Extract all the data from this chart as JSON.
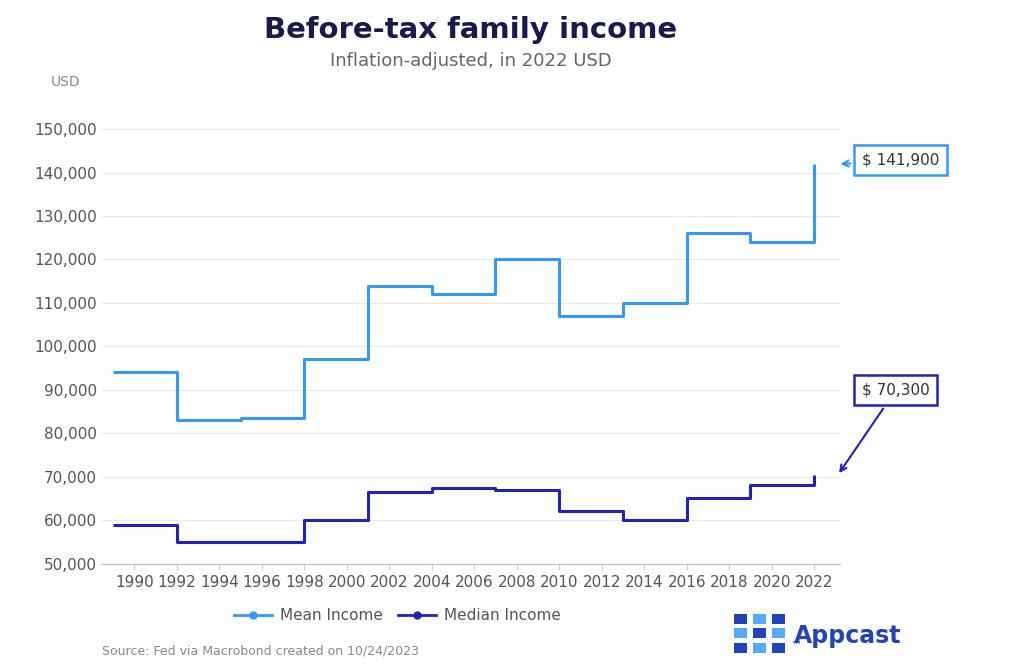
{
  "title": "Before-tax family income",
  "subtitle": "Inflation-adjusted, in 2022 USD",
  "ylabel": "USD",
  "source": "Source: Fed via Macrobond created on 10/24/2023",
  "mean_years": [
    1989,
    1992,
    1995,
    1998,
    2001,
    2004,
    2007,
    2010,
    2013,
    2016,
    2019,
    2022
  ],
  "mean_values": [
    94000,
    83000,
    83500,
    97000,
    114000,
    112000,
    120000,
    107000,
    110000,
    126000,
    124000,
    141900
  ],
  "median_years": [
    1989,
    1992,
    1995,
    1998,
    2001,
    2004,
    2007,
    2010,
    2013,
    2016,
    2019,
    2022
  ],
  "median_values": [
    59000,
    55000,
    55000,
    60000,
    66500,
    67500,
    67000,
    62000,
    60000,
    65000,
    68000,
    70300
  ],
  "mean_color": "#3399FF",
  "median_color": "#2222BB",
  "mean_label": "Mean Income",
  "median_label": "Median Income",
  "mean_end_label": "$ 141,900",
  "median_end_label": "$ 70,300",
  "ylim": [
    50000,
    155000
  ],
  "yticks": [
    50000,
    60000,
    70000,
    80000,
    90000,
    100000,
    110000,
    120000,
    130000,
    140000,
    150000
  ],
  "xticks": [
    1990,
    1992,
    1994,
    1996,
    1998,
    2000,
    2002,
    2004,
    2006,
    2008,
    2010,
    2012,
    2014,
    2016,
    2018,
    2020,
    2022
  ],
  "xlim_left": 1988.5,
  "xlim_right": 2023.2,
  "background_color": "#ffffff",
  "title_fontsize": 21,
  "subtitle_fontsize": 13,
  "annotation_fontsize": 11,
  "tick_fontsize": 11,
  "title_color": "#1a1a4e",
  "subtitle_color": "#666666"
}
